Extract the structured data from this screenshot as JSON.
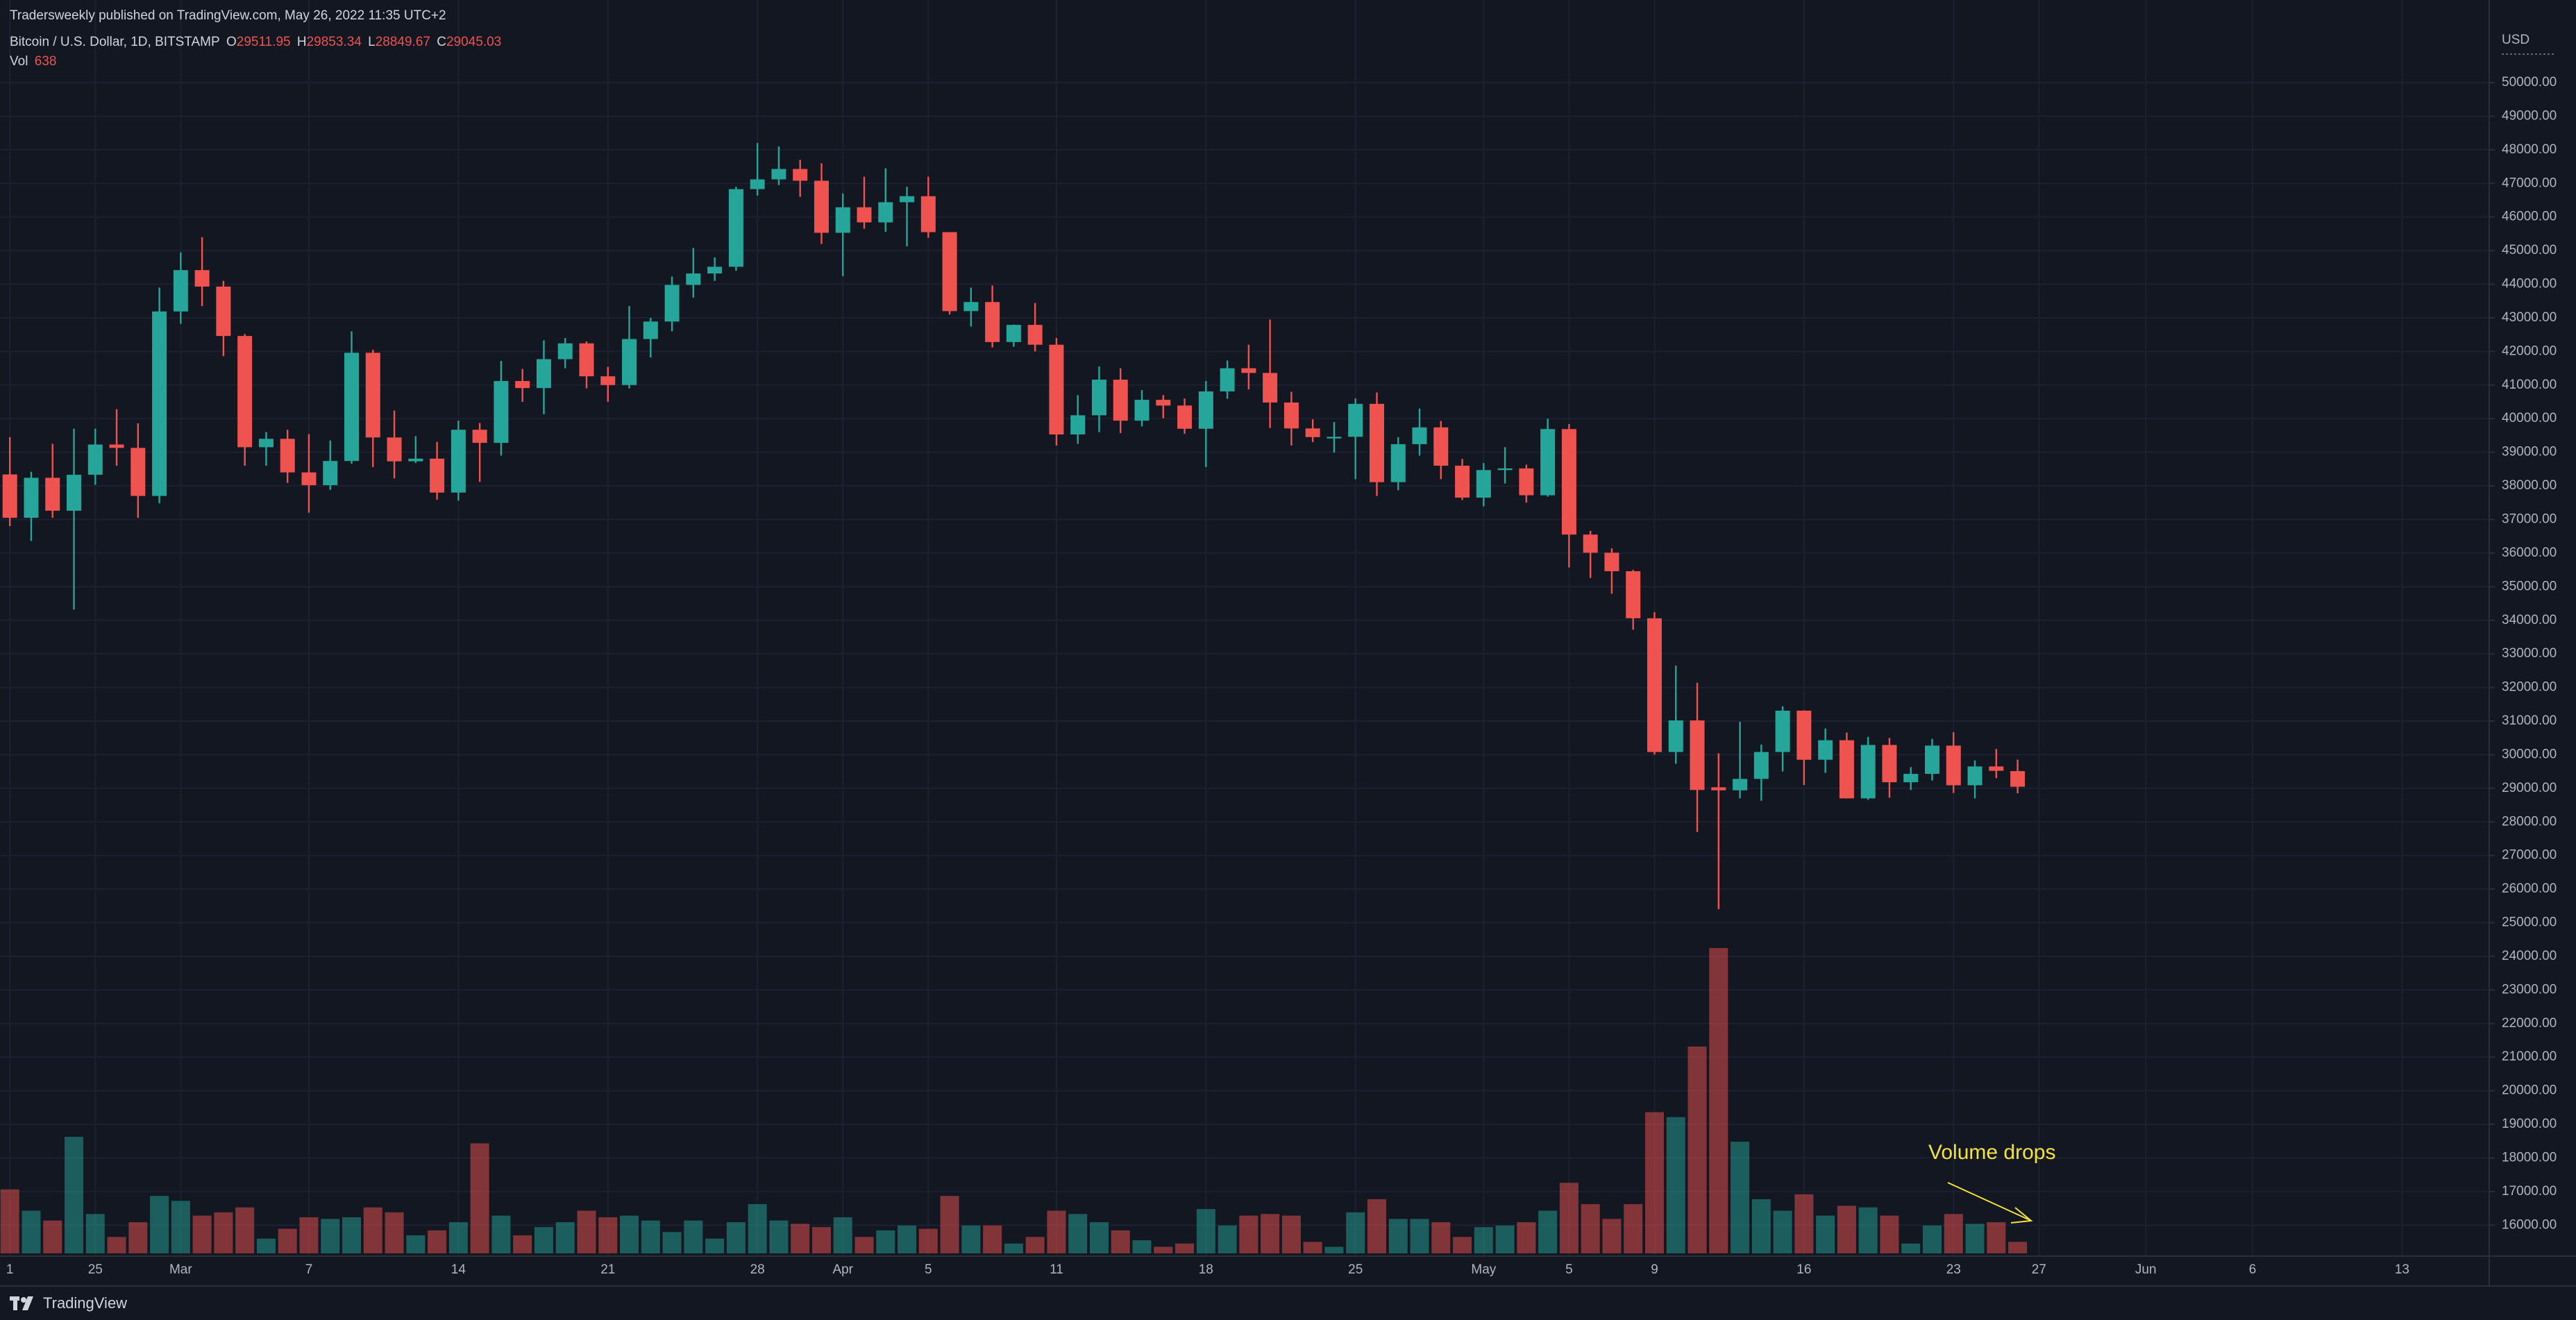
{
  "header": {
    "published": "Tradersweekly published on TradingView.com, May 26, 2022 11:35 UTC+2"
  },
  "footer": {
    "brand": "TradingView"
  },
  "chart_data": {
    "type": "candlestick",
    "symbol": "Bitcoin / U.S. Dollar, 1D, BITSTAMP",
    "ohlc_labels": [
      "O",
      "H",
      "L",
      "C"
    ],
    "volume_label": "Vol",
    "currency": "USD",
    "categories": [
      "1",
      null,
      null,
      null,
      "25",
      null,
      null,
      null,
      "Mar",
      null,
      null,
      null,
      null,
      null,
      "7",
      null,
      null,
      null,
      null,
      null,
      null,
      "14",
      null,
      null,
      null,
      null,
      null,
      null,
      "21",
      null,
      null,
      null,
      null,
      null,
      null,
      "28",
      null,
      null,
      null,
      "Apr",
      null,
      null,
      null,
      "5",
      null,
      null,
      null,
      null,
      null,
      "11",
      null,
      null,
      null,
      null,
      null,
      null,
      "18",
      null,
      null,
      null,
      null,
      null,
      null,
      "25",
      null,
      null,
      null,
      null,
      null,
      "May",
      null,
      null,
      null,
      "5",
      null,
      null,
      null,
      "9",
      null,
      null,
      null,
      null,
      null,
      null,
      "16",
      null,
      null,
      null,
      null,
      null,
      null,
      "23",
      null,
      null,
      null,
      "27",
      null,
      null,
      null,
      null,
      "Jun",
      null,
      null,
      null,
      null,
      "6",
      null,
      null,
      null,
      null,
      null,
      null,
      "13",
      null,
      null,
      null
    ],
    "open": [
      38340,
      37050,
      38240,
      37260,
      38330,
      39230,
      39130,
      37700,
      43190,
      44420,
      43930,
      42460,
      39150,
      39400,
      38400,
      38020,
      38740,
      41960,
      39440,
      38730,
      38810,
      37800,
      39670,
      39280,
      41120,
      40910,
      41770,
      42240,
      41260,
      41000,
      42370,
      42890,
      43980,
      44320,
      44520,
      46830,
      47120,
      47430,
      47080,
      45530,
      46290,
      45840,
      46440,
      46620,
      45550,
      43200,
      43470,
      42280,
      42790,
      42200,
      39530,
      40100,
      41160,
      39940,
      40560,
      40390,
      39700,
      40810,
      41500,
      41360,
      40480,
      39710,
      39450,
      39460,
      40440,
      38110,
      39240,
      39740,
      38600,
      37650,
      38470,
      38520,
      37720,
      39690,
      36550,
      36010,
      35460,
      34060,
      30080,
      31020,
      29030,
      28940,
      29280,
      30080,
      31310,
      29850,
      30430,
      28700,
      30290,
      29180,
      29430,
      30270,
      29090,
      29650,
      29511.95,
      null,
      null,
      null,
      null,
      null,
      null,
      null,
      null,
      null,
      null,
      null,
      null,
      null,
      null,
      null,
      null,
      null,
      null,
      null,
      null,
      null
    ],
    "high": [
      39450,
      38420,
      39250,
      39700,
      39700,
      40280,
      39860,
      43900,
      44950,
      45400,
      44100,
      42520,
      39600,
      39670,
      39540,
      39350,
      42600,
      42050,
      40240,
      39480,
      39310,
      39940,
      39870,
      41720,
      41480,
      42330,
      42400,
      42300,
      41540,
      43350,
      43000,
      44230,
      45080,
      44800,
      46900,
      48200,
      48100,
      47700,
      47600,
      46700,
      47200,
      47450,
      46900,
      47200,
      45550,
      43900,
      43960,
      42800,
      43440,
      42400,
      40700,
      41550,
      41500,
      40850,
      40700,
      40600,
      41120,
      41730,
      42200,
      42950,
      40800,
      39980,
      39900,
      40600,
      40780,
      39450,
      40300,
      39930,
      38800,
      38680,
      39150,
      38630,
      40000,
      39840,
      36660,
      36140,
      35500,
      34240,
      32650,
      32140,
      30040,
      30980,
      30300,
      31440,
      31320,
      30780,
      30660,
      30530,
      30500,
      29630,
      30470,
      30670,
      29830,
      30170,
      29853.34,
      null,
      null,
      null,
      null,
      null,
      null,
      null,
      null,
      null,
      null,
      null,
      null,
      null,
      null,
      null,
      null,
      null,
      null,
      null,
      null,
      null
    ],
    "low": [
      36800,
      36360,
      37050,
      34320,
      38030,
      38600,
      37050,
      37480,
      42820,
      43350,
      41860,
      38600,
      38600,
      38090,
      37200,
      37880,
      38660,
      38560,
      38220,
      38680,
      37590,
      37560,
      38120,
      38900,
      40500,
      40130,
      41500,
      40900,
      40500,
      40900,
      41820,
      42600,
      43600,
      44100,
      44400,
      46640,
      46950,
      46600,
      45200,
      44240,
      45650,
      45560,
      45130,
      45380,
      43100,
      42740,
      42120,
      42140,
      42000,
      39200,
      39250,
      39600,
      39570,
      39770,
      40010,
      39550,
      38560,
      40590,
      40870,
      39720,
      39200,
      39300,
      38990,
      38200,
      37700,
      37870,
      38900,
      38200,
      37580,
      37390,
      38070,
      37500,
      37680,
      35570,
      35260,
      34790,
      33720,
      30000,
      29730,
      27700,
      25400,
      28700,
      28630,
      29500,
      29100,
      29460,
      28700,
      28660,
      28720,
      28950,
      29230,
      28860,
      28700,
      29300,
      28849.67,
      null,
      null,
      null,
      null,
      null,
      null,
      null,
      null,
      null,
      null,
      null,
      null,
      null,
      null,
      null,
      null,
      null,
      null,
      null,
      null,
      null
    ],
    "close": [
      37050,
      38240,
      37260,
      38330,
      39230,
      39130,
      37700,
      43190,
      44420,
      43930,
      42460,
      39150,
      39400,
      38400,
      38020,
      38740,
      41960,
      39440,
      38730,
      38810,
      37800,
      39670,
      39280,
      41120,
      40910,
      41770,
      42240,
      41260,
      41000,
      42370,
      42890,
      43980,
      44320,
      44520,
      46830,
      47120,
      47430,
      47080,
      45530,
      46290,
      45840,
      46440,
      46620,
      45550,
      43200,
      43470,
      42280,
      42790,
      42200,
      39530,
      40100,
      41160,
      39940,
      40560,
      40390,
      39700,
      40810,
      41500,
      41360,
      40480,
      39710,
      39450,
      39460,
      40440,
      38110,
      39240,
      39740,
      38600,
      37650,
      38470,
      38520,
      37720,
      39690,
      36550,
      36010,
      35460,
      34060,
      30080,
      31020,
      28950,
      28940,
      29280,
      30080,
      31310,
      29850,
      30430,
      28700,
      30290,
      29180,
      29430,
      30270,
      29090,
      29650,
      29520,
      29045.03,
      null,
      null,
      null,
      null,
      null,
      null,
      null,
      null,
      null,
      null,
      null,
      null,
      null,
      null,
      null,
      null,
      null,
      null,
      null,
      null,
      null
    ],
    "volume": [
      3549,
      2366,
      1820,
      6461,
      2184,
      910,
      1729,
      3185,
      2912,
      2093,
      2275,
      2548,
      819,
      1365,
      2002,
      1911,
      2002,
      2548,
      2275,
      1001,
      1274,
      1729,
      6097,
      2093,
      1001,
      1456,
      1729,
      2366,
      2002,
      2093,
      1820,
      1183,
      1820,
      819,
      1729,
      2730,
      1820,
      1638,
      1456,
      2002,
      910,
      1274,
      1547,
      1365,
      3185,
      1547,
      1547,
      546,
      910,
      2366,
      2184,
      1729,
      1274,
      728,
      364,
      546,
      2457,
      1547,
      2093,
      2184,
      2093,
      637,
      364,
      2275,
      3003,
      1911,
      1911,
      1729,
      910,
      1456,
      1547,
      1729,
      2366,
      3913,
      2730,
      1911,
      2730,
      7826,
      7553,
      11466,
      16926,
      6188,
      3003,
      2366,
      3276,
      2093,
      2639,
      2548,
      2093,
      546,
      1547,
      2184,
      1638,
      1729,
      638,
      null,
      null,
      null,
      null,
      null,
      null,
      null,
      null,
      null,
      null,
      null,
      null,
      null,
      null,
      null,
      null,
      null,
      null,
      null,
      null,
      null
    ],
    "up_color": "#26a69a",
    "down_color": "#ef5350",
    "ylim": [
      15160,
      51570
    ],
    "yticks": [
      {
        "value": 16000,
        "label": "16000.00"
      },
      {
        "value": 17000,
        "label": "17000.00"
      },
      {
        "value": 18000,
        "label": "18000.00"
      },
      {
        "value": 19000,
        "label": "19000.00"
      },
      {
        "value": 20000,
        "label": "20000.00"
      },
      {
        "value": 21000,
        "label": "21000.00"
      },
      {
        "value": 22000,
        "label": "22000.00"
      },
      {
        "value": 23000,
        "label": "23000.00"
      },
      {
        "value": 24000,
        "label": "24000.00"
      },
      {
        "value": 25000,
        "label": "25000.00"
      },
      {
        "value": 26000,
        "label": "26000.00"
      },
      {
        "value": 27000,
        "label": "27000.00"
      },
      {
        "value": 28000,
        "label": "28000.00"
      },
      {
        "value": 29000,
        "label": "29000.00"
      },
      {
        "value": 30000,
        "label": "30000.00"
      },
      {
        "value": 31000,
        "label": "31000.00"
      },
      {
        "value": 32000,
        "label": "32000.00"
      },
      {
        "value": 33000,
        "label": "33000.00"
      },
      {
        "value": 34000,
        "label": "34000.00"
      },
      {
        "value": 35000,
        "label": "35000.00"
      },
      {
        "value": 36000,
        "label": "36000.00"
      },
      {
        "value": 37000,
        "label": "37000.00"
      },
      {
        "value": 38000,
        "label": "38000.00"
      },
      {
        "value": 39000,
        "label": "39000.00"
      },
      {
        "value": 40000,
        "label": "40000.00"
      },
      {
        "value": 41000,
        "label": "41000.00"
      },
      {
        "value": 42000,
        "label": "42000.00"
      },
      {
        "value": 43000,
        "label": "43000.00"
      },
      {
        "value": 44000,
        "label": "44000.00"
      },
      {
        "value": 45000,
        "label": "45000.00"
      },
      {
        "value": 46000,
        "label": "46000.00"
      },
      {
        "value": 47000,
        "label": "47000.00"
      },
      {
        "value": 48000,
        "label": "48000.00"
      },
      {
        "value": 49000,
        "label": "49000.00"
      },
      {
        "value": 50000,
        "label": "50000.00"
      }
    ],
    "grid": true,
    "annotation": "Volume drops",
    "annotation_color": "#f5e23a"
  }
}
